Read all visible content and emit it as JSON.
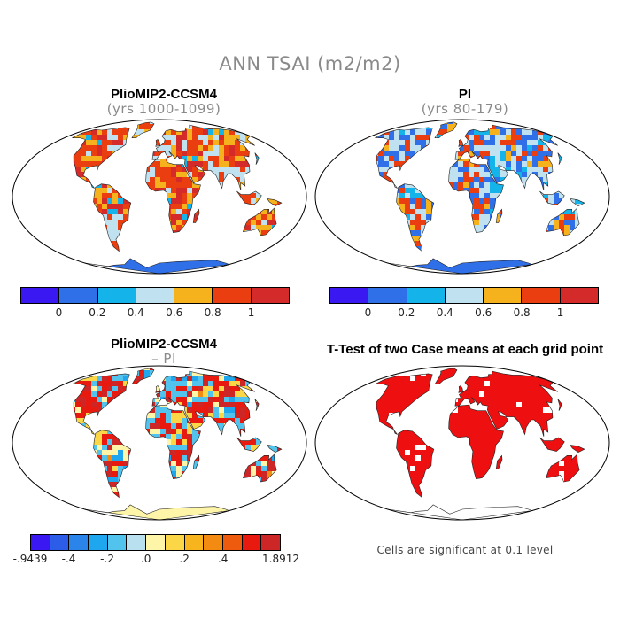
{
  "main_title": "ANN TSAI (m2/m2)",
  "panels": {
    "top_left": {
      "title": "PlioMIP2-CCSM4",
      "subtitle": "(yrs 1000-1099)"
    },
    "top_right": {
      "title": "PI",
      "subtitle": "(yrs 80-179)"
    },
    "bottom_left": {
      "title": "PlioMIP2-CCSM4",
      "subtitle": "– PI"
    },
    "bottom_right": {
      "title": "T-Test of two Case means at each grid point",
      "footnote": "Cells are significant at 0.1 level"
    }
  },
  "colors": {
    "abs_scale": [
      "#3a18f2",
      "#2f6fe8",
      "#14b4ea",
      "#bfe1f0",
      "#f6b21c",
      "#ea3e10",
      "#d42a2a"
    ],
    "diff_scale": [
      "#3a18f2",
      "#2c5de8",
      "#2a84ea",
      "#1ea6ee",
      "#52c3ec",
      "#b8e0ee",
      "#fff5a8",
      "#fbd646",
      "#f7b41c",
      "#f38b12",
      "#ee5a0e",
      "#e81a10",
      "#cc2626"
    ],
    "ttest": "#ee1010"
  },
  "colorbar_abs": {
    "ticks": [
      "0",
      "0.2",
      "0.4",
      "0.6",
      "0.8",
      "1"
    ]
  },
  "colorbar_diff": {
    "ticks": [
      "-.9439",
      "-.4",
      "-.2",
      ".0",
      ".2",
      ".4",
      "1.8912"
    ]
  },
  "chart_data": [
    {
      "type": "heatmap",
      "title": "PlioMIP2-CCSM4",
      "subtitle": "(yrs 1000-1099)",
      "variable": "ANN TSAI",
      "units": "m2/m2",
      "colorbar": {
        "levels": [
          0,
          0.2,
          0.4,
          0.6,
          0.8,
          1
        ]
      }
    },
    {
      "type": "heatmap",
      "title": "PI",
      "subtitle": "(yrs 80-179)",
      "variable": "ANN TSAI",
      "units": "m2/m2",
      "colorbar": {
        "levels": [
          0,
          0.2,
          0.4,
          0.6,
          0.8,
          1
        ]
      }
    },
    {
      "type": "heatmap",
      "title": "PlioMIP2-CCSM4",
      "subtitle": "– PI",
      "variable": "ANN TSAI difference",
      "colorbar": {
        "min": -0.9439,
        "max": 1.8912,
        "levels": [
          -0.4,
          -0.2,
          0.0,
          0.2,
          0.4
        ]
      }
    },
    {
      "type": "heatmap",
      "title": "T-Test of two Case means at each grid point",
      "significance_level": 0.1
    }
  ]
}
